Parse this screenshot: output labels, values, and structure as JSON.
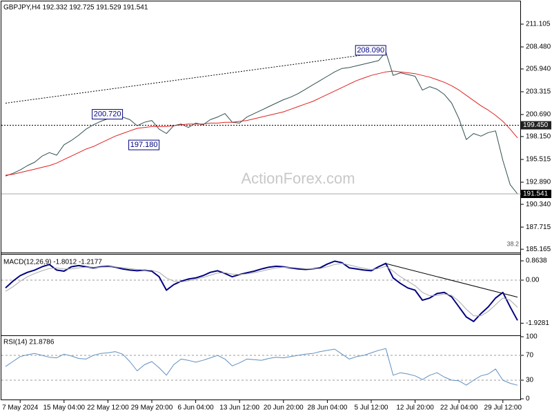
{
  "chart_data": [
    {
      "type": "line",
      "title": "GBPJPY,H4  192.332 192.725 191.529 191.541",
      "series": [
        {
          "color": "#2f4f4f",
          "width": 1,
          "values": [
            193.6,
            193.9,
            194.3,
            194.8,
            195.2,
            195.9,
            196.3,
            196.0,
            197.2,
            197.7,
            198.3,
            199.0,
            199.5,
            199.9,
            200.2,
            200.5,
            200.4,
            200.1,
            199.4,
            199.8,
            200.0,
            199.0,
            198.5,
            199.4,
            199.6,
            199.2,
            199.7,
            199.5,
            200.1,
            200.4,
            200.8,
            199.8,
            199.7,
            200.4,
            200.8,
            201.2,
            201.6,
            202.0,
            202.4,
            202.7,
            203.1,
            203.6,
            204.1,
            204.6,
            205.1,
            205.6,
            206.0,
            206.1,
            206.3,
            206.5,
            206.7,
            206.9,
            207.9,
            205.2,
            205.5,
            205.3,
            205.1,
            203.5,
            203.9,
            203.6,
            203.0,
            202.0,
            200.2,
            197.8,
            198.5,
            198.2,
            198.6,
            198.8,
            195.4,
            192.6,
            191.541
          ]
        },
        {
          "color": "#e02020",
          "width": 1,
          "values": [
            193.7,
            193.8,
            194.0,
            194.2,
            194.4,
            194.6,
            194.8,
            195.1,
            195.5,
            195.9,
            196.3,
            196.7,
            197.0,
            197.4,
            197.8,
            198.2,
            198.5,
            198.8,
            199.1,
            199.2,
            199.3,
            199.3,
            199.3,
            199.4,
            199.5,
            199.6,
            199.6,
            199.6,
            199.7,
            199.7,
            199.8,
            199.8,
            199.9,
            200.0,
            200.2,
            200.4,
            200.6,
            200.8,
            201.0,
            201.3,
            201.6,
            201.9,
            202.2,
            202.6,
            203.0,
            203.4,
            203.8,
            204.2,
            204.6,
            204.9,
            205.2,
            205.4,
            205.6,
            205.7,
            205.6,
            205.5,
            205.4,
            205.2,
            205.0,
            204.7,
            204.4,
            204.0,
            203.5,
            202.9,
            202.3,
            201.7,
            201.2,
            200.6,
            199.9,
            199.0,
            198.0
          ]
        }
      ],
      "ylim": [
        185.1,
        213.65
      ],
      "yticks": [
        211.105,
        {
          "value": 208.48,
          "label": "208.480"
        },
        {
          "value": 205.94,
          "label": "205.940"
        },
        203.315,
        {
          "value": 200.69,
          "label": "200.690"
        },
        {
          "value": 198.15,
          "label": "198.150"
        },
        195.515,
        {
          "value": 192.89,
          "label": "192.890"
        },
        {
          "value": 190.34,
          "label": "190.340"
        },
        187.715,
        185.165
      ],
      "hlines": [
        {
          "value": 199.45,
          "label": "199.450"
        }
      ],
      "last_price": {
        "value": 191.541,
        "label": "191.541"
      },
      "annotations": [
        {
          "value": 200.72,
          "label": "200.720",
          "at": 16
        },
        {
          "value": 197.18,
          "label": "197.180",
          "at": 21
        },
        {
          "value": 208.09,
          "label": "208.090",
          "at": 52
        }
      ],
      "trendline": {
        "x": [
          0,
          52
        ],
        "values": [
          202.0,
          207.9
        ]
      },
      "watermark": "ActionForex.com",
      "fib_label": "38.2"
    },
    {
      "type": "line",
      "title": "MACD(12,26,9) -1.8012 -1.2177",
      "series": [
        {
          "color": "#000080",
          "width": 2,
          "values": [
            -0.35,
            -0.05,
            0.2,
            0.35,
            0.45,
            0.6,
            0.7,
            0.45,
            0.4,
            0.6,
            0.65,
            0.6,
            0.55,
            0.6,
            0.62,
            0.58,
            0.5,
            0.45,
            0.42,
            0.45,
            0.4,
            0.15,
            -0.45,
            -0.2,
            -0.05,
            0.05,
            0.1,
            0.2,
            0.35,
            0.42,
            0.3,
            0.15,
            0.25,
            0.33,
            0.4,
            0.5,
            0.58,
            0.62,
            0.6,
            0.55,
            0.5,
            0.48,
            0.5,
            0.55,
            0.72,
            0.85,
            0.78,
            0.55,
            0.5,
            0.45,
            0.42,
            0.6,
            0.75,
            0.1,
            -0.15,
            -0.35,
            -0.45,
            -0.9,
            -0.8,
            -0.6,
            -0.55,
            -0.75,
            -1.2,
            -1.65,
            -1.85,
            -1.5,
            -1.2,
            -0.8,
            -0.55,
            -1.2,
            -1.8012
          ]
        },
        {
          "color": "#a9a9a9",
          "width": 1,
          "values": [
            -0.5,
            -0.3,
            -0.05,
            0.15,
            0.3,
            0.42,
            0.52,
            0.55,
            0.5,
            0.5,
            0.55,
            0.58,
            0.58,
            0.58,
            0.59,
            0.59,
            0.56,
            0.52,
            0.48,
            0.46,
            0.44,
            0.35,
            0.1,
            -0.05,
            -0.08,
            -0.03,
            0.04,
            0.12,
            0.22,
            0.32,
            0.33,
            0.27,
            0.25,
            0.28,
            0.33,
            0.4,
            0.48,
            0.55,
            0.58,
            0.57,
            0.54,
            0.51,
            0.5,
            0.52,
            0.6,
            0.7,
            0.75,
            0.68,
            0.6,
            0.53,
            0.47,
            0.52,
            0.62,
            0.4,
            0.15,
            -0.05,
            -0.25,
            -0.55,
            -0.7,
            -0.68,
            -0.62,
            -0.68,
            -0.95,
            -1.3,
            -1.6,
            -1.6,
            -1.4,
            -1.1,
            -0.8,
            -0.9,
            -1.2177
          ]
        }
      ],
      "ylim": [
        -2.41,
        1.05
      ],
      "yticks": [
        0.8638,
        {
          "value": 0,
          "label": "0.00"
        },
        -1.9281
      ],
      "levels": [
        0
      ],
      "trendline": {
        "x": [
          52,
          70
        ],
        "values": [
          0.74,
          -0.76
        ]
      }
    },
    {
      "type": "line",
      "title": "RSI(14) 21.8786",
      "series": [
        {
          "color": "#5f8fbf",
          "width": 1,
          "values": [
            52,
            60,
            68,
            71,
            73,
            70,
            67,
            66,
            72,
            69,
            65,
            64,
            70,
            73,
            74,
            76,
            72,
            60,
            45,
            55,
            60,
            50,
            38,
            55,
            64,
            62,
            59,
            62,
            66,
            70,
            64,
            53,
            58,
            64,
            63,
            62,
            65,
            67,
            66,
            68,
            70,
            72,
            73,
            76,
            78,
            80,
            72,
            64,
            68,
            70,
            74,
            78,
            81,
            38,
            42,
            40,
            37,
            31,
            38,
            42,
            35,
            30,
            29,
            22,
            30,
            37,
            40,
            48,
            30,
            25,
            21.8786
          ]
        }
      ],
      "ylim": [
        0,
        100
      ],
      "yticks": [
        100,
        70,
        30,
        0
      ],
      "levels": [
        70,
        30
      ],
      "categories": [
        null,
        null,
        "7 May 2024",
        null,
        null,
        null,
        null,
        null,
        "15 May 04:00",
        null,
        null,
        null,
        null,
        null,
        "22 May 12:00",
        null,
        null,
        null,
        null,
        null,
        "29 May 20:00",
        null,
        null,
        null,
        null,
        null,
        "6 Jun 04:00",
        null,
        null,
        null,
        null,
        null,
        "13 Jun 12:00",
        null,
        null,
        null,
        null,
        null,
        "20 Jun 20:00",
        null,
        null,
        null,
        null,
        null,
        "28 Jun 04:00",
        null,
        null,
        null,
        null,
        null,
        "5 Jul 12:00",
        null,
        null,
        null,
        null,
        null,
        "12 Jul 20:00",
        null,
        null,
        null,
        null,
        null,
        "22 Jul 04:00",
        null,
        null,
        null,
        null,
        null,
        "29 Jul 12:00",
        null,
        null
      ]
    }
  ]
}
